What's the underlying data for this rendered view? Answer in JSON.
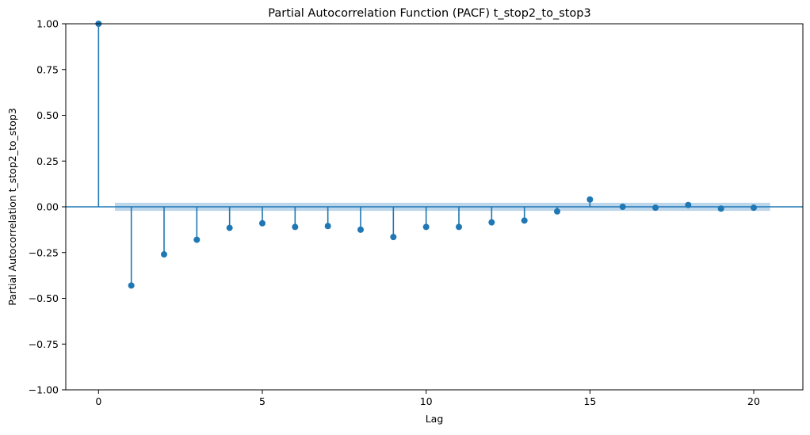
{
  "chart_data": {
    "type": "scatter",
    "subtype": "stem",
    "title": "Partial Autocorrelation Function (PACF) t_stop2_to_stop3",
    "xlabel": "Lag",
    "ylabel": "Partial Autocorrelation t_stop2_to_stop3",
    "xlim": [
      -1,
      21.5
    ],
    "ylim": [
      -1.0,
      1.0
    ],
    "x_ticks": [
      0,
      5,
      10,
      15,
      20
    ],
    "x_tick_labels": [
      "0",
      "5",
      "10",
      "15",
      "20"
    ],
    "y_ticks": [
      1.0,
      0.75,
      0.5,
      0.25,
      0.0,
      -0.25,
      -0.5,
      -0.75,
      -1.0
    ],
    "y_tick_labels": [
      "1.00",
      "0.75",
      "0.50",
      "0.25",
      "0.00",
      "−0.25",
      "−0.50",
      "−0.75",
      "−1.00"
    ],
    "grid": false,
    "series": [
      {
        "x": [
          0,
          1,
          2,
          3,
          4,
          5,
          6,
          7,
          8,
          9,
          10,
          11,
          12,
          13,
          14,
          15,
          16,
          17,
          18,
          19,
          20
        ],
        "values": [
          1.0,
          -0.43,
          -0.26,
          -0.18,
          -0.115,
          -0.09,
          -0.11,
          -0.105,
          -0.125,
          -0.165,
          -0.11,
          -0.11,
          -0.085,
          -0.075,
          -0.025,
          0.04,
          0.0,
          -0.005,
          0.01,
          -0.01,
          -0.005
        ]
      }
    ],
    "confidence_band": {
      "x_range": [
        0.5,
        20.5
      ],
      "lower": -0.022,
      "upper": 0.022
    },
    "colors": {
      "stem": "#1f77b4",
      "marker": "#1f77b4",
      "band": "#a6c8e4",
      "zero_line": "#1f77b4"
    }
  }
}
